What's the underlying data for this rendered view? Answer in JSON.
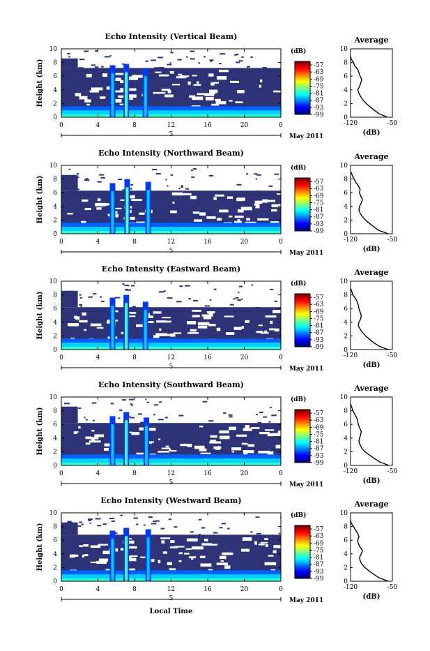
{
  "figure": {
    "x_axis_label": "Local Time",
    "date_label": "May 2011",
    "colorbar_unit": "(dB)",
    "profile_title": "Average",
    "profile_xlabel": "(dB)"
  },
  "chart_data": [
    {
      "type": "heatmap",
      "title": "Echo Intensity (Vertical Beam)",
      "ylabel": "Height (km)",
      "xlabel": "Local Time",
      "x_ticks": [
        "0",
        "4",
        "8",
        "12",
        "16",
        "20",
        "0"
      ],
      "y_ticks": [
        "0",
        "2",
        "4",
        "6",
        "8",
        "10"
      ],
      "xlim": [
        0,
        24
      ],
      "ylim": [
        0,
        10
      ],
      "date_marker": "5",
      "colorbar": {
        "label": "(dB)",
        "ticks": [
          "-57",
          "-63",
          "-69",
          "-75",
          "-81",
          "-87",
          "-93",
          "-99"
        ],
        "range": [
          -99,
          -54
        ]
      },
      "features": {
        "cloud_top_km": 7.2,
        "low_layer_top_km": 1.0,
        "towers": [
          {
            "x": 5.6,
            "top": 7.6
          },
          {
            "x": 7.1,
            "top": 7.8
          },
          {
            "x": 9.2,
            "top": 7.2
          }
        ]
      },
      "average_profile": {
        "title": "Average",
        "xlabel": "(dB)",
        "xlim": [
          -120,
          -50
        ],
        "x_ticks": [
          "-120",
          "-50"
        ],
        "y_ticks": [
          "0",
          "2",
          "4",
          "6",
          "8",
          "10"
        ],
        "heights": [
          0,
          0.5,
          1,
          1.5,
          2,
          2.5,
          3,
          3.5,
          4,
          4.5,
          5,
          5.5,
          6,
          6.5,
          7,
          7.5,
          8,
          8.5,
          9
        ],
        "values": [
          -58,
          -72,
          -80,
          -87,
          -94,
          -99,
          -103,
          -106,
          -108,
          -105,
          -103,
          -101,
          -104,
          -106,
          -108,
          -113,
          -115,
          -119,
          -120
        ]
      }
    },
    {
      "type": "heatmap",
      "title": "Echo Intensity (Northward Beam)",
      "ylabel": "Height (km)",
      "xlabel": "Local Time",
      "x_ticks": [
        "0",
        "4",
        "8",
        "12",
        "16",
        "20",
        "0"
      ],
      "y_ticks": [
        "0",
        "2",
        "4",
        "6",
        "8",
        "10"
      ],
      "xlim": [
        0,
        24
      ],
      "ylim": [
        0,
        10
      ],
      "date_marker": "5",
      "colorbar": {
        "label": "(dB)",
        "ticks": [
          "-57",
          "-63",
          "-69",
          "-75",
          "-81",
          "-87",
          "-93",
          "-99"
        ],
        "range": [
          -99,
          -54
        ]
      },
      "features": {
        "cloud_top_km": 6.3,
        "low_layer_top_km": 1.0,
        "towers": [
          {
            "x": 5.6,
            "top": 7.4
          },
          {
            "x": 7.2,
            "top": 8.0
          },
          {
            "x": 9.5,
            "top": 7.6
          }
        ]
      },
      "average_profile": {
        "title": "Average",
        "xlabel": "(dB)",
        "xlim": [
          -120,
          -50
        ],
        "x_ticks": [
          "-120",
          "-50"
        ],
        "y_ticks": [
          "0",
          "2",
          "4",
          "6",
          "8",
          "10"
        ],
        "heights": [
          0,
          0.5,
          1,
          1.5,
          2,
          2.5,
          3,
          3.5,
          4,
          4.5,
          5,
          5.5,
          6,
          6.5,
          7,
          7.5,
          8,
          8.5,
          9
        ],
        "values": [
          -57,
          -73,
          -81,
          -88,
          -95,
          -100,
          -104,
          -106,
          -105,
          -102,
          -100,
          -103,
          -105,
          -104,
          -107,
          -111,
          -114,
          -117,
          -119
        ]
      }
    },
    {
      "type": "heatmap",
      "title": "Echo Intensity (Eastward Beam)",
      "ylabel": "Height (km)",
      "xlabel": "Local Time",
      "x_ticks": [
        "0",
        "4",
        "8",
        "12",
        "16",
        "20",
        "0"
      ],
      "y_ticks": [
        "0",
        "2",
        "4",
        "6",
        "8",
        "10"
      ],
      "xlim": [
        0,
        24
      ],
      "ylim": [
        0,
        10
      ],
      "date_marker": "5",
      "colorbar": {
        "label": "(dB)",
        "ticks": [
          "-57",
          "-63",
          "-69",
          "-75",
          "-81",
          "-87",
          "-93",
          "-99"
        ],
        "range": [
          -99,
          -54
        ]
      },
      "features": {
        "cloud_top_km": 6.2,
        "low_layer_top_km": 1.0,
        "towers": [
          {
            "x": 5.6,
            "top": 7.6
          },
          {
            "x": 7.1,
            "top": 8.0
          },
          {
            "x": 9.2,
            "top": 7.0
          }
        ]
      },
      "average_profile": {
        "title": "Average",
        "xlabel": "(dB)",
        "xlim": [
          -120,
          -50
        ],
        "x_ticks": [
          "-120",
          "-50"
        ],
        "y_ticks": [
          "0",
          "2",
          "4",
          "6",
          "8",
          "10"
        ],
        "heights": [
          0,
          0.5,
          1,
          1.5,
          2,
          2.5,
          3,
          3.5,
          4,
          4.5,
          5,
          5.5,
          6,
          6.5,
          7,
          7.5,
          8,
          8.5,
          9
        ],
        "values": [
          -57,
          -72,
          -81,
          -88,
          -95,
          -100,
          -104,
          -107,
          -106,
          -103,
          -102,
          -104,
          -106,
          -107,
          -109,
          -112,
          -116,
          -118,
          -120
        ]
      }
    },
    {
      "type": "heatmap",
      "title": "Echo Intensity (Southward Beam)",
      "ylabel": "Height (km)",
      "xlabel": "Local Time",
      "x_ticks": [
        "0",
        "4",
        "8",
        "12",
        "16",
        "20",
        "0"
      ],
      "y_ticks": [
        "0",
        "2",
        "4",
        "6",
        "8",
        "10"
      ],
      "xlim": [
        0,
        24
      ],
      "ylim": [
        0,
        10
      ],
      "date_marker": "5",
      "colorbar": {
        "label": "(dB)",
        "ticks": [
          "-57",
          "-63",
          "-69",
          "-75",
          "-81",
          "-87",
          "-93",
          "-99"
        ],
        "range": [
          -99,
          -54
        ]
      },
      "features": {
        "cloud_top_km": 6.2,
        "low_layer_top_km": 1.0,
        "towers": [
          {
            "x": 5.6,
            "top": 7.2
          },
          {
            "x": 7.1,
            "top": 7.8
          },
          {
            "x": 9.3,
            "top": 7.0
          }
        ]
      },
      "average_profile": {
        "title": "Average",
        "xlabel": "(dB)",
        "xlim": [
          -120,
          -50
        ],
        "x_ticks": [
          "-120",
          "-50"
        ],
        "y_ticks": [
          "0",
          "2",
          "4",
          "6",
          "8",
          "10"
        ],
        "heights": [
          0,
          0.5,
          1,
          1.5,
          2,
          2.5,
          3,
          3.5,
          4,
          4.5,
          5,
          5.5,
          6,
          6.5,
          7,
          7.5,
          8,
          8.5,
          9
        ],
        "values": [
          -56,
          -71,
          -80,
          -88,
          -96,
          -101,
          -104,
          -106,
          -105,
          -103,
          -102,
          -105,
          -107,
          -108,
          -110,
          -113,
          -116,
          -118,
          -120
        ]
      }
    },
    {
      "type": "heatmap",
      "title": "Echo Intensity (Westward Beam)",
      "ylabel": "Height (km)",
      "xlabel": "Local Time",
      "x_ticks": [
        "0",
        "4",
        "8",
        "12",
        "16",
        "20",
        "0"
      ],
      "y_ticks": [
        "0",
        "2",
        "4",
        "6",
        "8",
        "10"
      ],
      "xlim": [
        0,
        24
      ],
      "ylim": [
        0,
        10
      ],
      "date_marker": "5",
      "colorbar": {
        "label": "(dB)",
        "ticks": [
          "-57",
          "-63",
          "-69",
          "-75",
          "-81",
          "-87",
          "-93",
          "-99"
        ],
        "range": [
          -99,
          -54
        ]
      },
      "features": {
        "cloud_top_km": 6.8,
        "low_layer_top_km": 1.0,
        "towers": [
          {
            "x": 5.6,
            "top": 7.4
          },
          {
            "x": 7.1,
            "top": 7.8
          },
          {
            "x": 9.5,
            "top": 7.6
          }
        ]
      },
      "average_profile": {
        "title": "Average",
        "xlabel": "(dB)",
        "xlim": [
          -120,
          -50
        ],
        "x_ticks": [
          "-120",
          "-50"
        ],
        "y_ticks": [
          "0",
          "2",
          "4",
          "6",
          "8",
          "10"
        ],
        "heights": [
          0,
          0.5,
          1,
          1.5,
          2,
          2.5,
          3,
          3.5,
          4,
          4.5,
          5,
          5.5,
          6,
          6.5,
          7,
          7.5,
          8,
          8.5,
          9
        ],
        "values": [
          -57,
          -72,
          -81,
          -89,
          -96,
          -101,
          -104,
          -105,
          -102,
          -100,
          -104,
          -107,
          -108,
          -106,
          -108,
          -112,
          -115,
          -119,
          -120
        ]
      }
    }
  ]
}
